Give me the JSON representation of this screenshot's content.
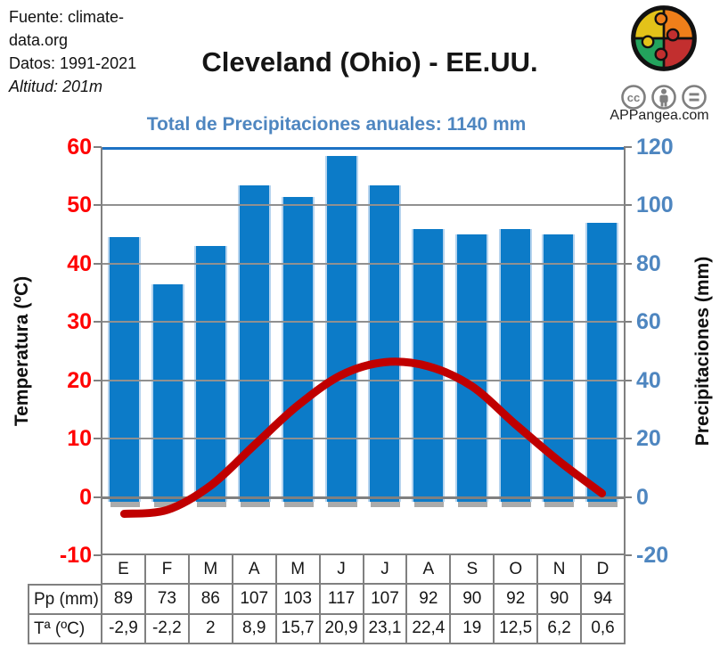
{
  "header": {
    "source_line1": "Fuente: climate-",
    "source_line2": "data.org",
    "data_period": "Datos: 1991-2021",
    "altitude": "Altitud: 201m",
    "title": "Cleveland (Ohio) - EE.UU.",
    "subtitle": "Total de Precipitaciones anuales: 1140 mm",
    "brand": "APPangea.com",
    "license_icons": [
      "cc-icon",
      "attribution-icon",
      "equal-icon"
    ]
  },
  "chart_data": {
    "type": "bar+line",
    "categories": [
      "E",
      "F",
      "M",
      "A",
      "M",
      "J",
      "J",
      "A",
      "S",
      "O",
      "N",
      "D"
    ],
    "series": [
      {
        "name": "Pp (mm)",
        "type": "bar",
        "axis": "right",
        "values": [
          89,
          73,
          86,
          107,
          103,
          117,
          107,
          92,
          90,
          92,
          90,
          94
        ]
      },
      {
        "name": "Tª (ºC)",
        "type": "line",
        "axis": "left",
        "values": [
          -2.9,
          -2.2,
          2,
          8.9,
          15.7,
          20.9,
          23.1,
          22.4,
          19,
          12.5,
          6.2,
          0.6
        ]
      }
    ],
    "left_axis": {
      "label": "Temperatura (ºC)",
      "ticks": [
        60,
        50,
        40,
        30,
        20,
        10,
        0,
        -10
      ],
      "min": -10,
      "max": 60
    },
    "right_axis": {
      "label": "Precipitaciones (mm)",
      "ticks": [
        120,
        100,
        80,
        60,
        40,
        20,
        0,
        -20
      ],
      "min": -20,
      "max": 120
    },
    "annual_total_mm": 1140,
    "grid": true,
    "legend_position": "none"
  },
  "table": {
    "row_labels": [
      "Pp (mm)",
      "Tª (ºC)"
    ],
    "months": [
      "E",
      "F",
      "M",
      "A",
      "M",
      "J",
      "J",
      "A",
      "S",
      "O",
      "N",
      "D"
    ],
    "pp_values": [
      "89",
      "73",
      "86",
      "107",
      "103",
      "117",
      "107",
      "92",
      "90",
      "92",
      "90",
      "94"
    ],
    "ta_values": [
      "-2,9",
      "-2,2",
      "2",
      "8,9",
      "15,7",
      "20,9",
      "23,1",
      "22,4",
      "19",
      "12,5",
      "6,2",
      "0,6"
    ]
  },
  "colors": {
    "bar": "#0C7BC8",
    "bar_edge": "#B5D3EE",
    "bar_shadow": "#ABABAB",
    "line": "#C00000",
    "left_tick": "#FF0000",
    "right_tick": "#4E86C0",
    "subtitle": "#4E86C0",
    "grid": "#909090",
    "axis": "#808080",
    "top_border": "#1D72C4",
    "logo_yellow": "#E3C219",
    "logo_orange": "#EF7F1A",
    "logo_green": "#23A35D",
    "logo_red": "#C22F2F",
    "cc_gray": "#7F7F7F"
  }
}
